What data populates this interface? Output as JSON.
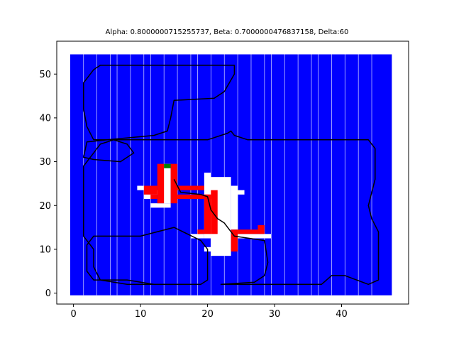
{
  "chart_data": {
    "type": "heatmap",
    "title": "Alpha: 0.8000000715255737, Beta: 0.7000000476837158, Delta:60",
    "xlabel": "",
    "ylabel": "",
    "xlim": [
      -2.5,
      50
    ],
    "ylim": [
      -2.5,
      57.5
    ],
    "x_ticks": [
      0,
      10,
      20,
      30,
      40
    ],
    "y_ticks": [
      0,
      10,
      20,
      30,
      40,
      50
    ],
    "grid": false,
    "colors": {
      "free_cell": "#0000ff",
      "visited_cell": "#ffffff",
      "obstacle_cell": "#ff0000",
      "goal_cell": "#008000",
      "path": "#000000",
      "cell_gap": "#ffffff"
    },
    "region": {
      "x": [
        -0.5,
        47.5
      ],
      "y": [
        -0.5,
        54.5
      ]
    },
    "vertical_gaps_x": [
      1.5,
      3.5,
      5.5,
      6.5,
      8.5,
      10.5,
      11.5,
      13.5,
      15.5,
      17.5,
      18.5,
      20.5,
      22.5,
      24.5,
      26.5,
      28.5,
      29.5,
      31.5,
      33.5,
      35.5,
      36.5,
      38.5,
      40.5,
      42.5,
      44.5
    ],
    "white_cells": [
      [
        19.5,
        20.5,
        12.5,
        27.5
      ],
      [
        20.5,
        23.5,
        8.5,
        26.5
      ],
      [
        23.5,
        24.5,
        14.5,
        24.5
      ],
      [
        24.5,
        25.5,
        22.5,
        23.5
      ],
      [
        17.5,
        19.5,
        12.5,
        13.5
      ],
      [
        24.5,
        29.5,
        12.5,
        13.5
      ],
      [
        19.5,
        20.5,
        9.5,
        10.5
      ],
      [
        13.5,
        14.5,
        20.5,
        29.5
      ],
      [
        10.5,
        13.5,
        22.5,
        23.5
      ],
      [
        9.5,
        10.5,
        23.5,
        24.5
      ],
      [
        11.5,
        14.5,
        19.5,
        20.5
      ],
      [
        10.5,
        11.5,
        21.5,
        22.5
      ]
    ],
    "red_cells": [
      [
        12.5,
        13.5,
        20.5,
        29.5
      ],
      [
        14.5,
        15.5,
        20.5,
        29.5
      ],
      [
        10.5,
        12.5,
        22.5,
        24.5
      ],
      [
        15.5,
        20.5,
        21.5,
        22.5
      ],
      [
        15.5,
        19.5,
        23.5,
        24.5
      ],
      [
        19.5,
        20.5,
        13.5,
        22.5
      ],
      [
        18.5,
        19.5,
        13.5,
        14.5
      ],
      [
        20.5,
        21.5,
        13.5,
        23.5
      ],
      [
        23.5,
        24.5,
        9.5,
        14.5
      ],
      [
        24.5,
        27.5,
        13.5,
        14.5
      ],
      [
        27.5,
        28.5,
        13.5,
        15.5
      ],
      [
        11.5,
        12.5,
        21.5,
        22.5
      ]
    ],
    "green_cells": [
      [
        13.5,
        14.5,
        28.5,
        29.5
      ]
    ],
    "path": [
      [
        15,
        26
      ],
      [
        16,
        23
      ],
      [
        19,
        22.5
      ],
      [
        20,
        22
      ],
      [
        20.5,
        19
      ],
      [
        21.5,
        17
      ],
      [
        22.5,
        16
      ],
      [
        24,
        13
      ],
      [
        28.5,
        12
      ],
      [
        29,
        7
      ],
      [
        28.5,
        4
      ],
      [
        27,
        2.5
      ],
      [
        22,
        2
      ],
      [
        30,
        2
      ],
      [
        37,
        2
      ],
      [
        38.5,
        4
      ],
      [
        40.5,
        4
      ],
      [
        44,
        2
      ],
      [
        45.5,
        3
      ],
      [
        45.5,
        14
      ],
      [
        44.5,
        17
      ],
      [
        44,
        20
      ],
      [
        45,
        26
      ],
      [
        45,
        33
      ],
      [
        44,
        35
      ],
      [
        35,
        35
      ],
      [
        26,
        35
      ],
      [
        24,
        36
      ],
      [
        23.5,
        37
      ],
      [
        23,
        36.5
      ],
      [
        20,
        35
      ],
      [
        17,
        35
      ],
      [
        14,
        35
      ],
      [
        8,
        35
      ],
      [
        3,
        35
      ],
      [
        2,
        38
      ],
      [
        1.5,
        42
      ],
      [
        1.5,
        48
      ],
      [
        3,
        51
      ],
      [
        4,
        52
      ],
      [
        24,
        52
      ],
      [
        24,
        50
      ],
      [
        22.5,
        46
      ],
      [
        21,
        44.5
      ],
      [
        15,
        44
      ],
      [
        14.5,
        40
      ],
      [
        14,
        37
      ],
      [
        12,
        36
      ],
      [
        5,
        35
      ],
      [
        2,
        34.5
      ],
      [
        1.5,
        31
      ],
      [
        3,
        30.5
      ],
      [
        7,
        30
      ],
      [
        9,
        32
      ],
      [
        8,
        34
      ],
      [
        6,
        35
      ],
      [
        4,
        34
      ],
      [
        3,
        32
      ],
      [
        1.5,
        29
      ],
      [
        1.5,
        13
      ],
      [
        3,
        10
      ],
      [
        3,
        6
      ],
      [
        4,
        3
      ],
      [
        8,
        2
      ],
      [
        16,
        2
      ],
      [
        19,
        2
      ],
      [
        20,
        3
      ],
      [
        20,
        10
      ],
      [
        19,
        12
      ],
      [
        15,
        15
      ],
      [
        10,
        13
      ],
      [
        3,
        13
      ],
      [
        2,
        11
      ],
      [
        2,
        5
      ],
      [
        3,
        3
      ],
      [
        8,
        3
      ],
      [
        12,
        2
      ],
      [
        19,
        2
      ]
    ]
  }
}
